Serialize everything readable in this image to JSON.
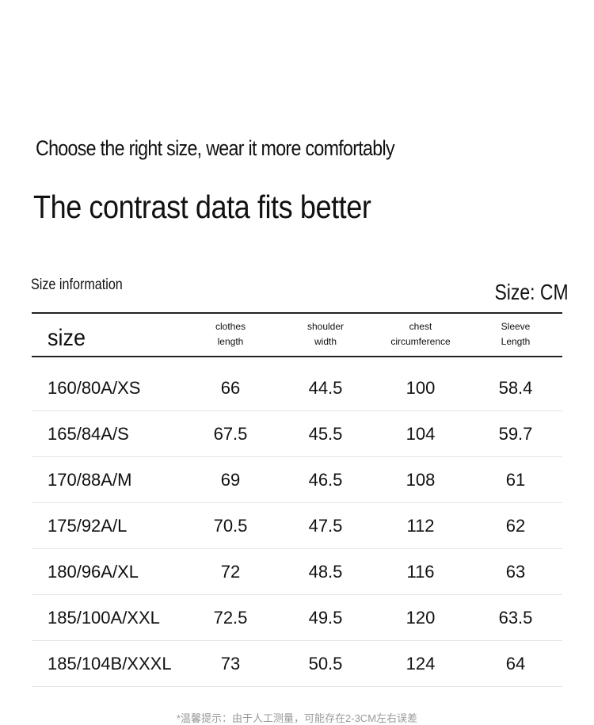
{
  "header": {
    "title": "Choose the right size, wear it more comfortably",
    "subtitle": "The contrast data fits better"
  },
  "table": {
    "label": "Size information",
    "unit": "Size: CM",
    "columns": [
      [
        "size"
      ],
      [
        "clothes",
        "length"
      ],
      [
        "shoulder",
        "width"
      ],
      [
        "chest",
        "circumference"
      ],
      [
        "Sleeve",
        "Length"
      ]
    ],
    "rows": [
      [
        "160/80A/XS",
        "66",
        "44.5",
        "100",
        "58.4"
      ],
      [
        "165/84A/S",
        "67.5",
        "45.5",
        "104",
        "59.7"
      ],
      [
        "170/88A/M",
        "69",
        "46.5",
        "108",
        "61"
      ],
      [
        "175/92A/L",
        "70.5",
        "47.5",
        "112",
        "62"
      ],
      [
        "180/96A/XL",
        "72",
        "48.5",
        "116",
        "63"
      ],
      [
        "185/100A/XXL",
        "72.5",
        "49.5",
        "120",
        "63.5"
      ],
      [
        "185/104B/XXXL",
        "73",
        "50.5",
        "124",
        "64"
      ]
    ]
  },
  "footnote": "*温馨提示：由于人工测量，可能存在2-3CM左右误差"
}
